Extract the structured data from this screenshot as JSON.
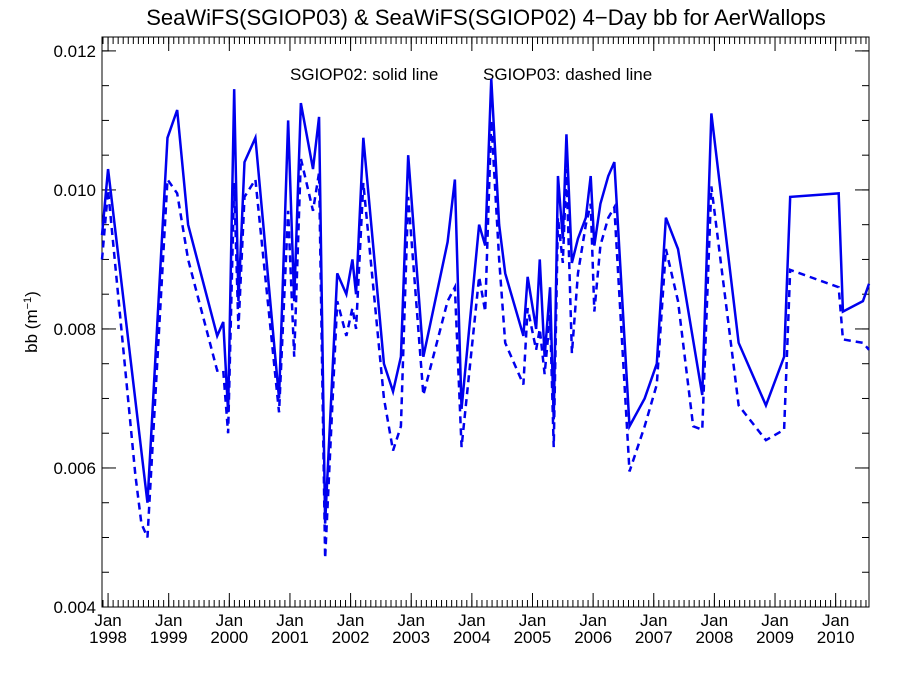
{
  "chart_data": {
    "type": "line",
    "title": "SeaWiFS(SGIOP03) & SeaWiFS(SGIOP02) 4−Day bb for AerWallops",
    "ylabel_main": "bb (m",
    "ylabel_sup": "−1",
    "ylabel_end": ")",
    "xlabel": "",
    "ylim": [
      0.004,
      0.0122
    ],
    "xlim": [
      1997.9,
      2010.55
    ],
    "yticks": [
      {
        "value": 0.004,
        "label": "0.004"
      },
      {
        "value": 0.006,
        "label": "0.006"
      },
      {
        "value": 0.008,
        "label": "0.008"
      },
      {
        "value": 0.01,
        "label": "0.010"
      },
      {
        "value": 0.012,
        "label": "0.012"
      }
    ],
    "xticks": [
      {
        "value": 1998,
        "month": "Jan",
        "year": "1998"
      },
      {
        "value": 1999,
        "month": "Jan",
        "year": "1999"
      },
      {
        "value": 2000,
        "month": "Jan",
        "year": "2000"
      },
      {
        "value": 2001,
        "month": "Jan",
        "year": "2001"
      },
      {
        "value": 2002,
        "month": "Jan",
        "year": "2002"
      },
      {
        "value": 2003,
        "month": "Jan",
        "year": "2003"
      },
      {
        "value": 2004,
        "month": "Jan",
        "year": "2004"
      },
      {
        "value": 2005,
        "month": "Jan",
        "year": "2005"
      },
      {
        "value": 2006,
        "month": "Jan",
        "year": "2006"
      },
      {
        "value": 2007,
        "month": "Jan",
        "year": "2007"
      },
      {
        "value": 2008,
        "month": "Jan",
        "year": "2008"
      },
      {
        "value": 2009,
        "month": "Jan",
        "year": "2009"
      },
      {
        "value": 2010,
        "month": "Jan",
        "year": "2010"
      }
    ],
    "annotations": [
      {
        "text": "SGIOP02: solid line"
      },
      {
        "text": "SGIOP03: dashed line"
      }
    ],
    "line_color": "#0000ee",
    "series": [
      {
        "name": "SGIOP02",
        "style": "solid",
        "points": [
          [
            1997.9,
            0.00935
          ],
          [
            1998.0,
            0.0103
          ],
          [
            1998.65,
            0.0055
          ],
          [
            1998.98,
            0.01075
          ],
          [
            1999.14,
            0.01115
          ],
          [
            1999.32,
            0.0095
          ],
          [
            1999.8,
            0.0079
          ],
          [
            1999.9,
            0.0081
          ],
          [
            1999.98,
            0.0068
          ],
          [
            2000.08,
            0.01145
          ],
          [
            2000.15,
            0.0084
          ],
          [
            2000.25,
            0.0104
          ],
          [
            2000.43,
            0.01075
          ],
          [
            2000.82,
            0.007
          ],
          [
            2000.97,
            0.011
          ],
          [
            2001.07,
            0.0084
          ],
          [
            2001.18,
            0.01125
          ],
          [
            2001.38,
            0.0103
          ],
          [
            2001.48,
            0.01105
          ],
          [
            2001.58,
            0.0052
          ],
          [
            2001.78,
            0.0088
          ],
          [
            2001.93,
            0.0085
          ],
          [
            2002.03,
            0.009
          ],
          [
            2002.09,
            0.0085
          ],
          [
            2002.21,
            0.01075
          ],
          [
            2002.55,
            0.0075
          ],
          [
            2002.7,
            0.0071
          ],
          [
            2002.83,
            0.0076
          ],
          [
            2002.95,
            0.0105
          ],
          [
            2003.2,
            0.0076
          ],
          [
            2003.6,
            0.00925
          ],
          [
            2003.72,
            0.01015
          ],
          [
            2003.83,
            0.00685
          ],
          [
            2004.12,
            0.0095
          ],
          [
            2004.22,
            0.0092
          ],
          [
            2004.32,
            0.0116
          ],
          [
            2004.45,
            0.0095
          ],
          [
            2004.55,
            0.0088
          ],
          [
            2004.85,
            0.0079
          ],
          [
            2004.92,
            0.00875
          ],
          [
            2005.06,
            0.008
          ],
          [
            2005.12,
            0.009
          ],
          [
            2005.2,
            0.0076
          ],
          [
            2005.29,
            0.0086
          ],
          [
            2005.35,
            0.0067
          ],
          [
            2005.42,
            0.0102
          ],
          [
            2005.5,
            0.0093
          ],
          [
            2005.56,
            0.0108
          ],
          [
            2005.65,
            0.00895
          ],
          [
            2005.75,
            0.0093
          ],
          [
            2005.88,
            0.0096
          ],
          [
            2005.96,
            0.0102
          ],
          [
            2006.02,
            0.0092
          ],
          [
            2006.12,
            0.0098
          ],
          [
            2006.25,
            0.0102
          ],
          [
            2006.35,
            0.0104
          ],
          [
            2006.6,
            0.0066
          ],
          [
            2006.85,
            0.007
          ],
          [
            2007.05,
            0.0075
          ],
          [
            2007.2,
            0.0096
          ],
          [
            2007.4,
            0.00915
          ],
          [
            2007.8,
            0.00705
          ],
          [
            2007.95,
            0.0111
          ],
          [
            2008.4,
            0.0078
          ],
          [
            2008.85,
            0.0069
          ],
          [
            2009.15,
            0.0076
          ],
          [
            2009.25,
            0.0099
          ],
          [
            2010.05,
            0.00995
          ],
          [
            2010.12,
            0.00825
          ],
          [
            2010.45,
            0.0084
          ],
          [
            2010.55,
            0.00865
          ]
        ]
      },
      {
        "name": "SGIOP03",
        "style": "dashed",
        "points": [
          [
            1997.9,
            0.009
          ],
          [
            1998.0,
            0.01
          ],
          [
            1998.45,
            0.0059
          ],
          [
            1998.55,
            0.0052
          ],
          [
            1998.65,
            0.005
          ],
          [
            1998.98,
            0.01015
          ],
          [
            1999.14,
            0.00995
          ],
          [
            1999.32,
            0.009
          ],
          [
            1999.8,
            0.0074
          ],
          [
            1999.9,
            0.0074
          ],
          [
            1999.98,
            0.0065
          ],
          [
            2000.08,
            0.0101
          ],
          [
            2000.15,
            0.008
          ],
          [
            2000.25,
            0.0099
          ],
          [
            2000.43,
            0.01015
          ],
          [
            2000.82,
            0.0068
          ],
          [
            2000.97,
            0.0097
          ],
          [
            2001.07,
            0.0076
          ],
          [
            2001.18,
            0.01045
          ],
          [
            2001.38,
            0.0097
          ],
          [
            2001.48,
            0.01025
          ],
          [
            2001.58,
            0.0047
          ],
          [
            2001.78,
            0.0084
          ],
          [
            2001.93,
            0.0079
          ],
          [
            2002.03,
            0.0083
          ],
          [
            2002.09,
            0.008
          ],
          [
            2002.21,
            0.0101
          ],
          [
            2002.55,
            0.007
          ],
          [
            2002.7,
            0.00625
          ],
          [
            2002.83,
            0.0066
          ],
          [
            2002.95,
            0.0099
          ],
          [
            2003.2,
            0.00705
          ],
          [
            2003.6,
            0.0084
          ],
          [
            2003.72,
            0.0086
          ],
          [
            2003.83,
            0.0063
          ],
          [
            2004.12,
            0.00875
          ],
          [
            2004.22,
            0.00825
          ],
          [
            2004.32,
            0.011
          ],
          [
            2004.45,
            0.009
          ],
          [
            2004.55,
            0.0078
          ],
          [
            2004.85,
            0.0072
          ],
          [
            2004.92,
            0.0083
          ],
          [
            2005.06,
            0.0077
          ],
          [
            2005.12,
            0.008
          ],
          [
            2005.2,
            0.00735
          ],
          [
            2005.29,
            0.0082
          ],
          [
            2005.35,
            0.0063
          ],
          [
            2005.42,
            0.0096
          ],
          [
            2005.5,
            0.00895
          ],
          [
            2005.56,
            0.0103
          ],
          [
            2005.65,
            0.00765
          ],
          [
            2005.75,
            0.0088
          ],
          [
            2005.88,
            0.0095
          ],
          [
            2005.96,
            0.0098
          ],
          [
            2006.02,
            0.00825
          ],
          [
            2006.12,
            0.0092
          ],
          [
            2006.25,
            0.0096
          ],
          [
            2006.35,
            0.00975
          ],
          [
            2006.6,
            0.00595
          ],
          [
            2006.85,
            0.0066
          ],
          [
            2007.05,
            0.0072
          ],
          [
            2007.2,
            0.00915
          ],
          [
            2007.4,
            0.0084
          ],
          [
            2007.65,
            0.0066
          ],
          [
            2007.8,
            0.00655
          ],
          [
            2007.95,
            0.01005
          ],
          [
            2008.4,
            0.0069
          ],
          [
            2008.85,
            0.0064
          ],
          [
            2009.15,
            0.00655
          ],
          [
            2009.25,
            0.00885
          ],
          [
            2010.05,
            0.0086
          ],
          [
            2010.12,
            0.00785
          ],
          [
            2010.45,
            0.0078
          ],
          [
            2010.55,
            0.0077
          ]
        ]
      }
    ]
  }
}
